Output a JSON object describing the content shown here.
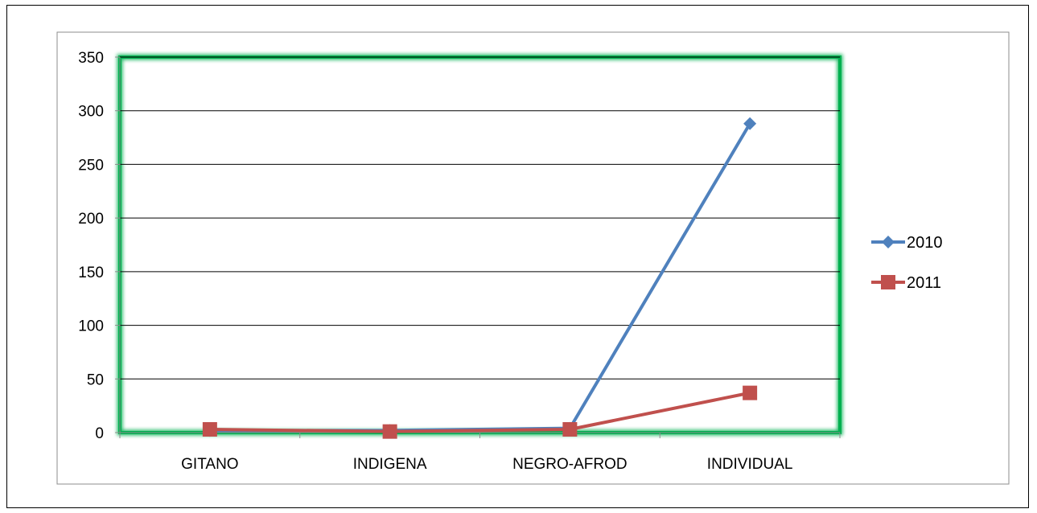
{
  "chart_data": {
    "type": "line",
    "title": "",
    "xlabel": "",
    "ylabel": "",
    "categories": [
      "GITANO",
      "INDIGENA",
      "NEGRO-AFROD",
      "INDIVIDUAL"
    ],
    "series": [
      {
        "name": "2010",
        "values": [
          2,
          2,
          4,
          288
        ],
        "color": "#4F81BD",
        "marker": "diamond"
      },
      {
        "name": "2011",
        "values": [
          3,
          1,
          3,
          37
        ],
        "color": "#C0504D",
        "marker": "square"
      }
    ],
    "ylim": [
      0,
      350
    ],
    "yticks": [
      "0",
      "50",
      "100",
      "150",
      "200",
      "250",
      "300",
      "350"
    ],
    "grid": true,
    "legend": "right",
    "plot_border_color": "#00B050"
  }
}
